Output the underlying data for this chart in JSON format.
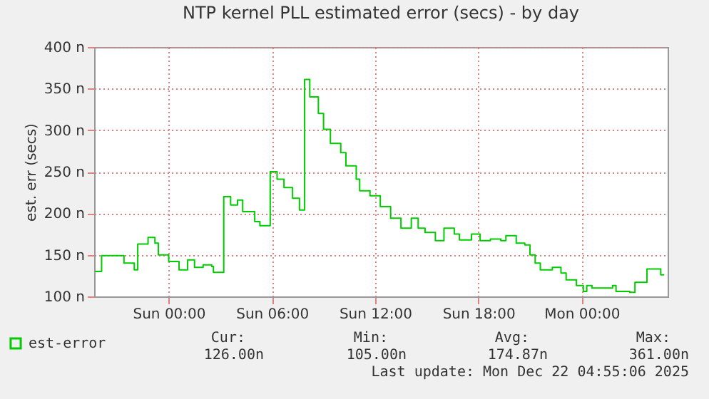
{
  "chart_data": {
    "type": "step",
    "title": "NTP kernel PLL estimated error (secs) - by day",
    "ylabel": "est. err (secs)",
    "x": [
      "2025-12-20T19:42",
      "2025-12-20T20:06",
      "2025-12-20T21:24",
      "2025-12-20T22:00",
      "2025-12-20T22:12",
      "2025-12-20T22:48",
      "2025-12-20T23:12",
      "2025-12-20T23:24",
      "2025-12-21T00:00",
      "2025-12-21T00:36",
      "2025-12-21T01:06",
      "2025-12-21T01:30",
      "2025-12-21T02:00",
      "2025-12-21T02:30",
      "2025-12-21T02:36",
      "2025-12-21T03:12",
      "2025-12-21T03:36",
      "2025-12-21T04:00",
      "2025-12-21T04:18",
      "2025-12-21T05:00",
      "2025-12-21T05:18",
      "2025-12-21T05:54",
      "2025-12-21T06:18",
      "2025-12-21T06:42",
      "2025-12-21T07:12",
      "2025-12-21T07:36",
      "2025-12-21T07:54",
      "2025-12-21T08:12",
      "2025-12-21T08:42",
      "2025-12-21T09:00",
      "2025-12-21T09:24",
      "2025-12-21T10:00",
      "2025-12-21T10:18",
      "2025-12-21T10:54",
      "2025-12-21T11:06",
      "2025-12-21T11:42",
      "2025-12-21T12:18",
      "2025-12-21T12:54",
      "2025-12-21T13:30",
      "2025-12-21T14:06",
      "2025-12-21T14:30",
      "2025-12-21T14:54",
      "2025-12-21T15:30",
      "2025-12-21T16:00",
      "2025-12-21T16:36",
      "2025-12-21T16:54",
      "2025-12-21T17:36",
      "2025-12-21T18:06",
      "2025-12-21T18:42",
      "2025-12-21T19:18",
      "2025-12-21T19:36",
      "2025-12-21T20:12",
      "2025-12-21T20:42",
      "2025-12-21T21:00",
      "2025-12-21T21:18",
      "2025-12-21T21:36",
      "2025-12-21T22:18",
      "2025-12-21T22:48",
      "2025-12-21T23:06",
      "2025-12-21T23:42",
      "2025-12-22T00:06",
      "2025-12-22T00:18",
      "2025-12-22T00:36",
      "2025-12-22T01:48",
      "2025-12-22T02:00",
      "2025-12-22T02:48",
      "2025-12-22T03:06",
      "2025-12-22T03:48",
      "2025-12-22T04:36",
      "2025-12-22T04:48"
    ],
    "series": [
      {
        "name": "est-error",
        "color": "#00cc00",
        "values": [
          130,
          149,
          140,
          132,
          163,
          171,
          164,
          150,
          142,
          132,
          144,
          135,
          138,
          136,
          129,
          220,
          210,
          216,
          202,
          190,
          185,
          250,
          241,
          231,
          218,
          204,
          361,
          340,
          320,
          301,
          284,
          273,
          257,
          241,
          227,
          221,
          208,
          194,
          182,
          194,
          182,
          177,
          167,
          182,
          175,
          168,
          175,
          167,
          169,
          167,
          173,
          164,
          162,
          150,
          140,
          132,
          135,
          128,
          120,
          113,
          106,
          113,
          110,
          113,
          106,
          105,
          117,
          133,
          126,
          126
        ]
      }
    ],
    "xlim": [
      "2025-12-20T19:40",
      "2025-12-22T05:00"
    ],
    "ylim": [
      100,
      400
    ],
    "xticks": [
      {
        "value": "2025-12-21T00:00",
        "label": "Sun 00:00"
      },
      {
        "value": "2025-12-21T06:00",
        "label": "Sun 06:00"
      },
      {
        "value": "2025-12-21T12:00",
        "label": "Sun 12:00"
      },
      {
        "value": "2025-12-21T18:00",
        "label": "Sun 18:00"
      },
      {
        "value": "2025-12-22T00:00",
        "label": "Mon 00:00"
      }
    ],
    "yticks": [
      {
        "value": 100,
        "label": "100 n"
      },
      {
        "value": 150,
        "label": "150 n"
      },
      {
        "value": 200,
        "label": "200 n"
      },
      {
        "value": 250,
        "label": "250 n"
      },
      {
        "value": 300,
        "label": "300 n"
      },
      {
        "value": 350,
        "label": "350 n"
      },
      {
        "value": 400,
        "label": "400 n"
      }
    ],
    "grid": true,
    "legend": "bottom left",
    "line_style": "solid",
    "marker": "none",
    "annotations": [
      "Cur:",
      "126.00n",
      "Min:",
      "105.00n",
      "Avg:",
      "174.87n",
      "Max:",
      "361.00n",
      "Last update: Mon Dec 22 04:55:06 2025"
    ]
  }
}
